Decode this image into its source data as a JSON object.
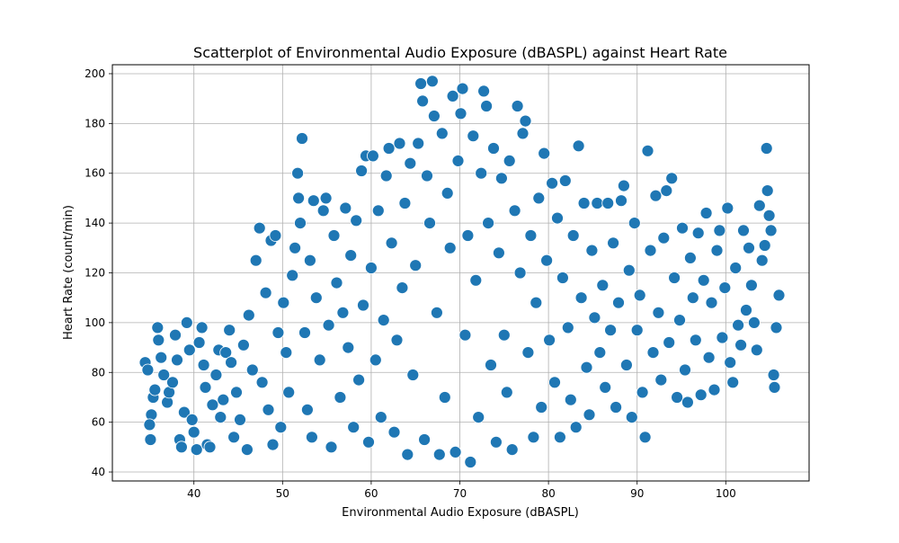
{
  "chart_data": {
    "type": "scatter",
    "title": "Scatterplot of Environmental Audio Exposure (dBASPL) against Heart Rate",
    "xlabel": "Environmental Audio Exposure (dBASPL)",
    "ylabel": "Heart Rate (count/min)",
    "xlim": [
      30.8,
      109.4
    ],
    "ylim": [
      36.4,
      203.6
    ],
    "xticks": [
      40,
      50,
      60,
      70,
      80,
      90,
      100
    ],
    "yticks": [
      40,
      60,
      80,
      100,
      120,
      140,
      160,
      180,
      200
    ],
    "grid": true,
    "marker_color": "#1f77b4",
    "edge_color": "#ffffff",
    "series": [
      {
        "points": [
          [
            34.5,
            84
          ],
          [
            34.8,
            81
          ],
          [
            35.2,
            63
          ],
          [
            35.0,
            59
          ],
          [
            35.1,
            53
          ],
          [
            35.4,
            70
          ],
          [
            35.6,
            73
          ],
          [
            35.9,
            98
          ],
          [
            36.0,
            93
          ],
          [
            36.3,
            86
          ],
          [
            36.6,
            79
          ],
          [
            37.0,
            68
          ],
          [
            37.2,
            72
          ],
          [
            37.6,
            76
          ],
          [
            37.9,
            95
          ],
          [
            38.1,
            85
          ],
          [
            38.4,
            53
          ],
          [
            38.6,
            50
          ],
          [
            38.9,
            64
          ],
          [
            39.2,
            100
          ],
          [
            39.5,
            89
          ],
          [
            39.8,
            61
          ],
          [
            40.0,
            56
          ],
          [
            40.3,
            49
          ],
          [
            40.6,
            92
          ],
          [
            40.9,
            98
          ],
          [
            41.1,
            83
          ],
          [
            41.3,
            74
          ],
          [
            41.5,
            51
          ],
          [
            41.8,
            50
          ],
          [
            42.1,
            67
          ],
          [
            42.5,
            79
          ],
          [
            42.8,
            89
          ],
          [
            43.0,
            62
          ],
          [
            43.3,
            69
          ],
          [
            43.6,
            88
          ],
          [
            44.0,
            97
          ],
          [
            44.2,
            84
          ],
          [
            44.5,
            54
          ],
          [
            44.8,
            72
          ],
          [
            45.2,
            61
          ],
          [
            45.6,
            91
          ],
          [
            46.0,
            49
          ],
          [
            46.2,
            103
          ],
          [
            46.6,
            81
          ],
          [
            47.0,
            125
          ],
          [
            47.4,
            138
          ],
          [
            47.7,
            76
          ],
          [
            48.1,
            112
          ],
          [
            48.4,
            65
          ],
          [
            48.7,
            133
          ],
          [
            48.9,
            51
          ],
          [
            49.2,
            135
          ],
          [
            49.5,
            96
          ],
          [
            49.8,
            58
          ],
          [
            50.1,
            108
          ],
          [
            50.4,
            88
          ],
          [
            50.7,
            72
          ],
          [
            51.1,
            119
          ],
          [
            51.4,
            130
          ],
          [
            51.7,
            160
          ],
          [
            51.8,
            150
          ],
          [
            52.0,
            140
          ],
          [
            52.2,
            174
          ],
          [
            52.5,
            96
          ],
          [
            52.8,
            65
          ],
          [
            53.1,
            125
          ],
          [
            53.3,
            54
          ],
          [
            53.5,
            149
          ],
          [
            53.8,
            110
          ],
          [
            54.2,
            85
          ],
          [
            54.6,
            145
          ],
          [
            54.9,
            150
          ],
          [
            55.2,
            99
          ],
          [
            55.5,
            50
          ],
          [
            55.8,
            135
          ],
          [
            56.1,
            116
          ],
          [
            56.5,
            70
          ],
          [
            56.8,
            104
          ],
          [
            57.1,
            146
          ],
          [
            57.4,
            90
          ],
          [
            57.7,
            127
          ],
          [
            58.0,
            58
          ],
          [
            58.3,
            141
          ],
          [
            58.6,
            77
          ],
          [
            58.9,
            161
          ],
          [
            59.1,
            107
          ],
          [
            59.4,
            167
          ],
          [
            59.7,
            52
          ],
          [
            60.0,
            122
          ],
          [
            60.2,
            167
          ],
          [
            60.5,
            85
          ],
          [
            60.8,
            145
          ],
          [
            61.1,
            62
          ],
          [
            61.4,
            101
          ],
          [
            61.7,
            159
          ],
          [
            62.0,
            170
          ],
          [
            62.3,
            132
          ],
          [
            62.6,
            56
          ],
          [
            62.9,
            93
          ],
          [
            63.2,
            172
          ],
          [
            63.5,
            114
          ],
          [
            63.8,
            148
          ],
          [
            64.1,
            47
          ],
          [
            64.4,
            164
          ],
          [
            64.7,
            79
          ],
          [
            65.0,
            123
          ],
          [
            65.3,
            172
          ],
          [
            65.6,
            196
          ],
          [
            65.8,
            189
          ],
          [
            66.0,
            53
          ],
          [
            66.3,
            159
          ],
          [
            66.6,
            140
          ],
          [
            66.9,
            197
          ],
          [
            67.1,
            183
          ],
          [
            67.4,
            104
          ],
          [
            67.7,
            47
          ],
          [
            68.0,
            176
          ],
          [
            68.3,
            70
          ],
          [
            68.6,
            152
          ],
          [
            68.9,
            130
          ],
          [
            69.2,
            191
          ],
          [
            69.5,
            48
          ],
          [
            69.8,
            165
          ],
          [
            70.1,
            184
          ],
          [
            70.3,
            194
          ],
          [
            70.6,
            95
          ],
          [
            70.9,
            135
          ],
          [
            71.2,
            44
          ],
          [
            71.5,
            175
          ],
          [
            71.8,
            117
          ],
          [
            72.1,
            62
          ],
          [
            72.4,
            160
          ],
          [
            72.7,
            193
          ],
          [
            73.0,
            187
          ],
          [
            73.2,
            140
          ],
          [
            73.5,
            83
          ],
          [
            73.8,
            170
          ],
          [
            74.1,
            52
          ],
          [
            74.4,
            128
          ],
          [
            74.7,
            158
          ],
          [
            75.0,
            95
          ],
          [
            75.3,
            72
          ],
          [
            75.6,
            165
          ],
          [
            75.9,
            49
          ],
          [
            76.2,
            145
          ],
          [
            76.5,
            187
          ],
          [
            76.8,
            120
          ],
          [
            77.1,
            176
          ],
          [
            77.4,
            181
          ],
          [
            77.7,
            88
          ],
          [
            78.0,
            135
          ],
          [
            78.3,
            54
          ],
          [
            78.6,
            108
          ],
          [
            78.9,
            150
          ],
          [
            79.2,
            66
          ],
          [
            79.5,
            168
          ],
          [
            79.8,
            125
          ],
          [
            80.1,
            93
          ],
          [
            80.4,
            156
          ],
          [
            80.7,
            76
          ],
          [
            81.0,
            142
          ],
          [
            81.3,
            54
          ],
          [
            81.6,
            118
          ],
          [
            81.9,
            157
          ],
          [
            82.2,
            98
          ],
          [
            82.5,
            69
          ],
          [
            82.8,
            135
          ],
          [
            83.1,
            58
          ],
          [
            83.4,
            171
          ],
          [
            83.7,
            110
          ],
          [
            84.0,
            148
          ],
          [
            84.3,
            82
          ],
          [
            84.6,
            63
          ],
          [
            84.9,
            129
          ],
          [
            85.2,
            102
          ],
          [
            85.5,
            148
          ],
          [
            85.8,
            88
          ],
          [
            86.1,
            115
          ],
          [
            86.4,
            74
          ],
          [
            86.7,
            148
          ],
          [
            87.0,
            97
          ],
          [
            87.3,
            132
          ],
          [
            87.6,
            66
          ],
          [
            87.9,
            108
          ],
          [
            88.2,
            149
          ],
          [
            88.5,
            155
          ],
          [
            88.8,
            83
          ],
          [
            89.1,
            121
          ],
          [
            89.4,
            62
          ],
          [
            89.7,
            140
          ],
          [
            90.0,
            97
          ],
          [
            90.3,
            111
          ],
          [
            90.6,
            72
          ],
          [
            90.9,
            54
          ],
          [
            91.2,
            169
          ],
          [
            91.5,
            129
          ],
          [
            91.8,
            88
          ],
          [
            92.1,
            151
          ],
          [
            92.4,
            104
          ],
          [
            92.7,
            77
          ],
          [
            93.0,
            134
          ],
          [
            93.3,
            153
          ],
          [
            93.6,
            92
          ],
          [
            93.9,
            158
          ],
          [
            94.2,
            118
          ],
          [
            94.5,
            70
          ],
          [
            94.8,
            101
          ],
          [
            95.1,
            138
          ],
          [
            95.4,
            81
          ],
          [
            95.7,
            68
          ],
          [
            96.0,
            126
          ],
          [
            96.3,
            110
          ],
          [
            96.6,
            93
          ],
          [
            96.9,
            136
          ],
          [
            97.2,
            71
          ],
          [
            97.5,
            117
          ],
          [
            97.8,
            144
          ],
          [
            98.1,
            86
          ],
          [
            98.4,
            108
          ],
          [
            98.7,
            73
          ],
          [
            99.0,
            129
          ],
          [
            99.3,
            137
          ],
          [
            99.6,
            94
          ],
          [
            99.9,
            114
          ],
          [
            100.2,
            146
          ],
          [
            100.5,
            84
          ],
          [
            100.8,
            76
          ],
          [
            101.1,
            122
          ],
          [
            101.4,
            99
          ],
          [
            101.7,
            91
          ],
          [
            102.0,
            137
          ],
          [
            102.3,
            105
          ],
          [
            102.6,
            130
          ],
          [
            102.9,
            115
          ],
          [
            103.2,
            100
          ],
          [
            103.5,
            89
          ],
          [
            103.8,
            147
          ],
          [
            104.1,
            125
          ],
          [
            104.4,
            131
          ],
          [
            104.6,
            170
          ],
          [
            104.7,
            153
          ],
          [
            104.9,
            143
          ],
          [
            105.1,
            137
          ],
          [
            105.4,
            79
          ],
          [
            105.5,
            74
          ],
          [
            105.7,
            98
          ],
          [
            106.0,
            111
          ]
        ]
      }
    ]
  }
}
